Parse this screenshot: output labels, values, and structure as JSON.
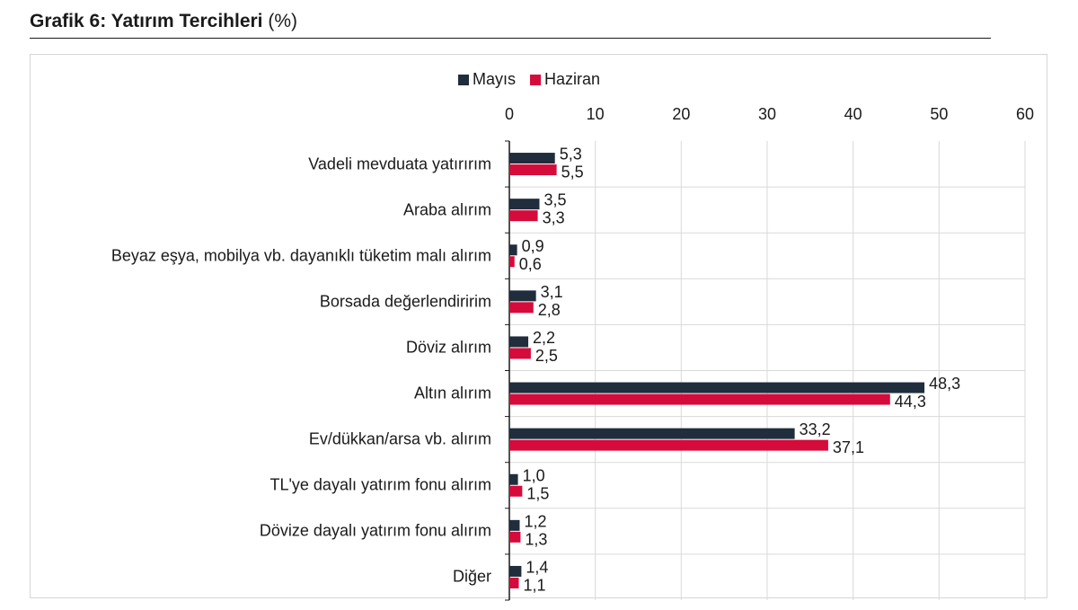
{
  "title": {
    "main": "Grafik 6: Yatırım Tercihleri",
    "unit": "(%)"
  },
  "colors": {
    "mayis": "#1f2d3d",
    "haziran": "#d50b3b",
    "grid": "#d9d9d9",
    "axis": "#1a1a1a"
  },
  "chart_data": {
    "type": "bar",
    "orientation": "horizontal",
    "title": "Grafik 6: Yatırım Tercihleri (%)",
    "xlabel": "",
    "ylabel": "",
    "xlim": [
      0,
      60
    ],
    "xticks": [
      "0",
      "10",
      "20",
      "30",
      "40",
      "50",
      "60"
    ],
    "grid": true,
    "legend_position": "top",
    "categories": [
      "Vadeli mevduata yatırırım",
      "Araba alırım",
      "Beyaz eşya, mobilya vb. dayanıklı tüketim malı alırım",
      "Borsada değerlendiririm",
      "Döviz alırım",
      "Altın alırım",
      "Ev/dükkan/arsa vb. alırım",
      "TL'ye dayalı yatırım fonu alırım",
      "Dövize dayalı yatırım fonu alırım",
      "Diğer"
    ],
    "series": [
      {
        "name": "Mayıs",
        "color": "#1f2d3d",
        "values": [
          5.3,
          3.5,
          0.9,
          3.1,
          2.2,
          48.3,
          33.2,
          1.0,
          1.2,
          1.4
        ],
        "labels": [
          "5,3",
          "3,5",
          "0,9",
          "3,1",
          "2,2",
          "48,3",
          "33,2",
          "1,0",
          "1,2",
          "1,4"
        ]
      },
      {
        "name": "Haziran",
        "color": "#d50b3b",
        "values": [
          5.5,
          3.3,
          0.6,
          2.8,
          2.5,
          44.3,
          37.1,
          1.5,
          1.3,
          1.1
        ],
        "labels": [
          "5,5",
          "3,3",
          "0,6",
          "2,8",
          "2,5",
          "44,3",
          "37,1",
          "1,5",
          "1,3",
          "1,1"
        ]
      }
    ]
  }
}
